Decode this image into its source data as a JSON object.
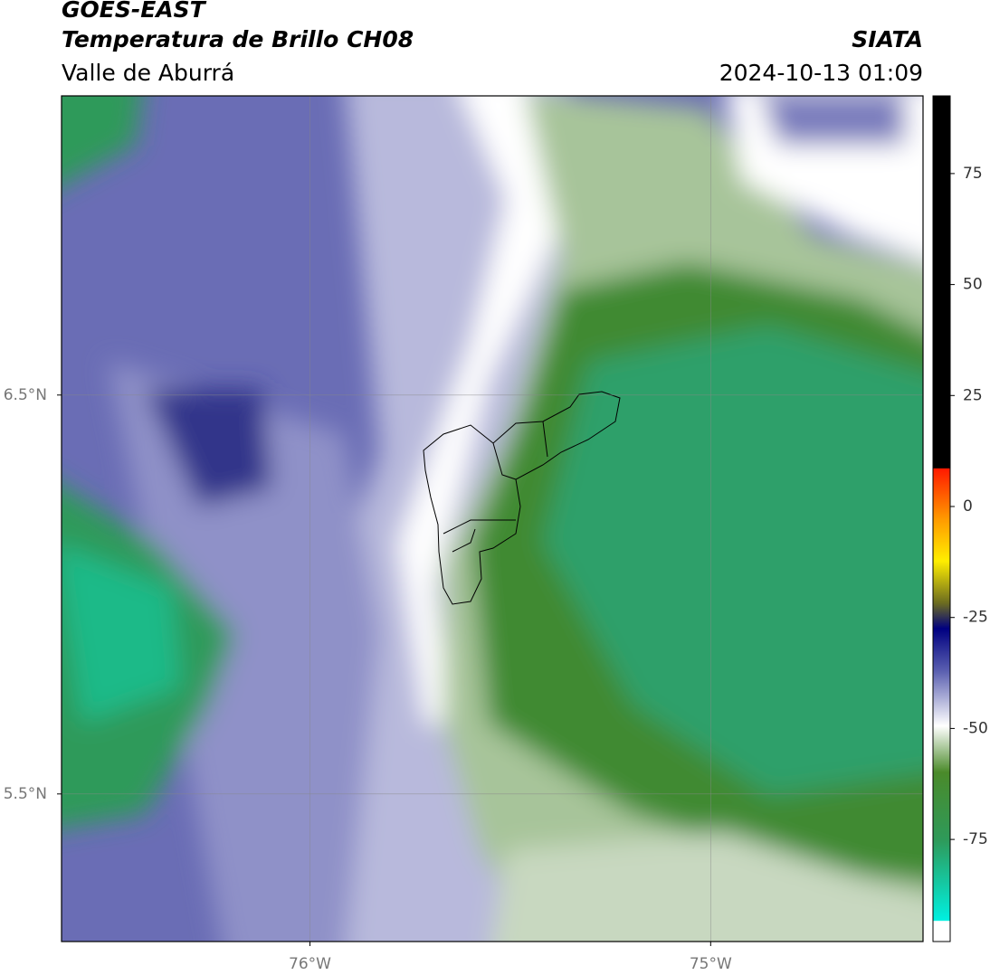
{
  "title": "GOES-EAST",
  "subtitle": "Temperatura de Brillo CH08",
  "region": "Valle de Aburrá",
  "source": "SIATA",
  "timestamp": "2024-10-13 01:09",
  "map": {
    "xlim": [
      -76.62,
      -74.47
    ],
    "ylim": [
      5.13,
      7.25
    ],
    "xticks": [
      {
        "value": -76,
        "label": "76°W"
      },
      {
        "value": -75,
        "label": "75°W"
      }
    ],
    "yticks": [
      {
        "value": 6.5,
        "label": "6.5°N"
      },
      {
        "value": 5.5,
        "label": "5.5°N"
      }
    ],
    "grid": true
  },
  "colorbar": {
    "lim": [
      -98,
      92.5
    ],
    "ticks": [
      75,
      50,
      25,
      0,
      -25,
      -50,
      -75
    ]
  }
}
